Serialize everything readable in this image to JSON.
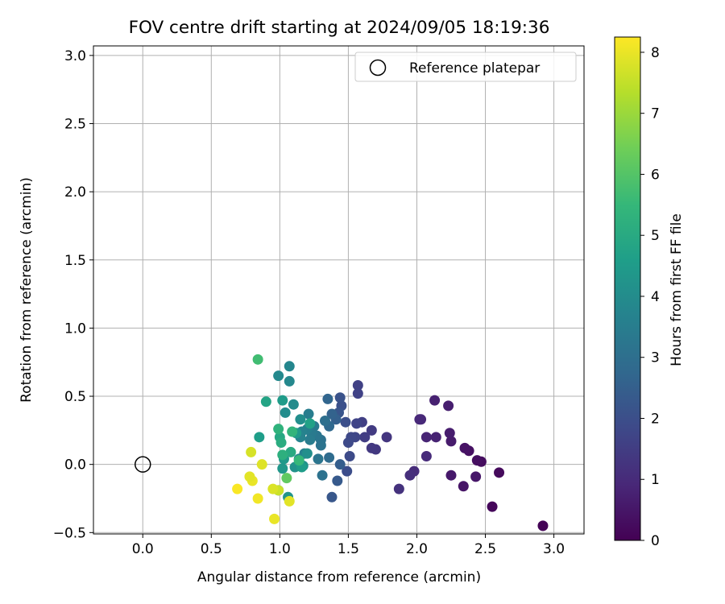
{
  "chart_data": {
    "type": "scatter",
    "title": "FOV centre drift starting at 2024/09/05 18:19:36",
    "xlabel": "Angular distance from reference (arcmin)",
    "ylabel": "Rotation from reference (arcmin)",
    "xlim": [
      -0.36,
      3.22
    ],
    "ylim": [
      -0.51,
      3.07
    ],
    "xticks": [
      0.0,
      0.5,
      1.0,
      1.5,
      2.0,
      2.5,
      3.0
    ],
    "xtick_labels": [
      "0.0",
      "0.5",
      "1.0",
      "1.5",
      "2.0",
      "2.5",
      "3.0"
    ],
    "yticks": [
      -0.5,
      0.0,
      0.5,
      1.0,
      1.5,
      2.0,
      2.5,
      3.0
    ],
    "ytick_labels": [
      "−0.5",
      "0.0",
      "0.5",
      "1.0",
      "1.5",
      "2.0",
      "2.5",
      "3.0"
    ],
    "grid": true,
    "legend": {
      "position": "top-right",
      "entries": [
        "Reference platepar"
      ]
    },
    "reference_point": {
      "label": "Reference platepar",
      "x": 0.0,
      "y": 0.0,
      "marker": "hollow-circle"
    },
    "colorbar": {
      "label": "Hours from first FF file",
      "colormap": "viridis",
      "range": [
        0,
        8.25
      ],
      "ticks": [
        0,
        1,
        2,
        3,
        4,
        5,
        6,
        7,
        8
      ],
      "tick_labels": [
        "0",
        "1",
        "2",
        "3",
        "4",
        "5",
        "6",
        "7",
        "8"
      ],
      "stops": [
        "#440154",
        "#482878",
        "#3e4989",
        "#31688e",
        "#26828e",
        "#1f9e89",
        "#35b779",
        "#6ece58",
        "#b5de2b",
        "#fde725"
      ]
    },
    "points": [
      {
        "x": 2.92,
        "y": -0.45,
        "h": 0.05
      },
      {
        "x": 2.55,
        "y": -0.31,
        "h": 0.15
      },
      {
        "x": 2.6,
        "y": -0.06,
        "h": 0.2
      },
      {
        "x": 2.47,
        "y": 0.02,
        "h": 0.25
      },
      {
        "x": 2.44,
        "y": 0.03,
        "h": 0.3
      },
      {
        "x": 2.38,
        "y": 0.1,
        "h": 0.35
      },
      {
        "x": 2.35,
        "y": 0.12,
        "h": 0.4
      },
      {
        "x": 2.34,
        "y": -0.16,
        "h": 0.45
      },
      {
        "x": 2.43,
        "y": -0.09,
        "h": 0.5
      },
      {
        "x": 2.25,
        "y": -0.08,
        "h": 0.55
      },
      {
        "x": 2.25,
        "y": 0.17,
        "h": 0.6
      },
      {
        "x": 2.24,
        "y": 0.23,
        "h": 0.65
      },
      {
        "x": 2.23,
        "y": 0.43,
        "h": 0.7
      },
      {
        "x": 2.13,
        "y": 0.47,
        "h": 0.75
      },
      {
        "x": 2.14,
        "y": 0.2,
        "h": 0.8
      },
      {
        "x": 2.07,
        "y": 0.2,
        "h": 0.85
      },
      {
        "x": 2.03,
        "y": 0.33,
        "h": 0.9
      },
      {
        "x": 2.02,
        "y": 0.33,
        "h": 0.95
      },
      {
        "x": 2.07,
        "y": 0.06,
        "h": 1.0
      },
      {
        "x": 1.98,
        "y": -0.05,
        "h": 1.05
      },
      {
        "x": 1.95,
        "y": -0.08,
        "h": 1.1
      },
      {
        "x": 1.87,
        "y": -0.18,
        "h": 1.2
      },
      {
        "x": 1.78,
        "y": 0.2,
        "h": 1.3
      },
      {
        "x": 1.7,
        "y": 0.11,
        "h": 1.35
      },
      {
        "x": 1.67,
        "y": 0.12,
        "h": 1.4
      },
      {
        "x": 1.67,
        "y": 0.25,
        "h": 1.45
      },
      {
        "x": 1.62,
        "y": 0.2,
        "h": 1.5
      },
      {
        "x": 1.6,
        "y": 0.31,
        "h": 1.55
      },
      {
        "x": 1.57,
        "y": 0.58,
        "h": 1.6
      },
      {
        "x": 1.57,
        "y": 0.52,
        "h": 1.65
      },
      {
        "x": 1.56,
        "y": 0.3,
        "h": 1.7
      },
      {
        "x": 1.55,
        "y": 0.2,
        "h": 1.75
      },
      {
        "x": 1.52,
        "y": 0.2,
        "h": 1.8
      },
      {
        "x": 1.5,
        "y": 0.16,
        "h": 1.85
      },
      {
        "x": 1.51,
        "y": 0.06,
        "h": 1.9
      },
      {
        "x": 1.49,
        "y": -0.05,
        "h": 1.95
      },
      {
        "x": 1.48,
        "y": 0.31,
        "h": 2.0
      },
      {
        "x": 1.45,
        "y": 0.43,
        "h": 2.05
      },
      {
        "x": 1.44,
        "y": 0.49,
        "h": 2.1
      },
      {
        "x": 1.43,
        "y": 0.38,
        "h": 2.2
      },
      {
        "x": 1.38,
        "y": -0.24,
        "h": 2.25
      },
      {
        "x": 1.42,
        "y": -0.12,
        "h": 2.35
      },
      {
        "x": 1.44,
        "y": 0.0,
        "h": 2.45
      },
      {
        "x": 1.41,
        "y": 0.33,
        "h": 2.5
      },
      {
        "x": 1.38,
        "y": 0.37,
        "h": 2.6
      },
      {
        "x": 1.35,
        "y": 0.48,
        "h": 2.7
      },
      {
        "x": 1.36,
        "y": 0.28,
        "h": 2.8
      },
      {
        "x": 1.36,
        "y": 0.05,
        "h": 2.9
      },
      {
        "x": 1.33,
        "y": 0.32,
        "h": 3.0
      },
      {
        "x": 1.3,
        "y": 0.18,
        "h": 3.05
      },
      {
        "x": 1.31,
        "y": -0.08,
        "h": 3.1
      },
      {
        "x": 1.3,
        "y": 0.14,
        "h": 3.15
      },
      {
        "x": 1.28,
        "y": 0.04,
        "h": 3.2
      },
      {
        "x": 1.27,
        "y": 0.21,
        "h": 3.25
      },
      {
        "x": 1.25,
        "y": 0.28,
        "h": 3.35
      },
      {
        "x": 1.23,
        "y": 0.23,
        "h": 3.4
      },
      {
        "x": 1.22,
        "y": 0.18,
        "h": 3.45
      },
      {
        "x": 1.21,
        "y": 0.37,
        "h": 3.5
      },
      {
        "x": 1.2,
        "y": 0.26,
        "h": 3.55
      },
      {
        "x": 1.18,
        "y": 0.08,
        "h": 3.6
      },
      {
        "x": 1.16,
        "y": 0.24,
        "h": 3.65
      },
      {
        "x": 1.15,
        "y": 0.2,
        "h": 3.7
      },
      {
        "x": 1.14,
        "y": 0.04,
        "h": 3.75
      },
      {
        "x": 1.07,
        "y": 0.72,
        "h": 3.8
      },
      {
        "x": 1.07,
        "y": 0.61,
        "h": 3.85
      },
      {
        "x": 0.99,
        "y": 0.65,
        "h": 3.9
      },
      {
        "x": 1.1,
        "y": 0.44,
        "h": 3.95
      },
      {
        "x": 1.04,
        "y": 0.38,
        "h": 4.0
      },
      {
        "x": 1.15,
        "y": 0.33,
        "h": 4.05
      },
      {
        "x": 1.2,
        "y": 0.08,
        "h": 4.1
      },
      {
        "x": 1.17,
        "y": -0.01,
        "h": 4.15
      },
      {
        "x": 1.11,
        "y": -0.02,
        "h": 4.2
      },
      {
        "x": 1.06,
        "y": -0.24,
        "h": 4.25
      },
      {
        "x": 0.99,
        "y": -0.19,
        "h": 4.3
      },
      {
        "x": 1.02,
        "y": -0.03,
        "h": 4.35
      },
      {
        "x": 1.03,
        "y": 0.04,
        "h": 4.4
      },
      {
        "x": 1.12,
        "y": 0.23,
        "h": 4.45
      },
      {
        "x": 1.02,
        "y": 0.47,
        "h": 4.5
      },
      {
        "x": 1.16,
        "y": -0.02,
        "h": 4.55
      },
      {
        "x": 0.85,
        "y": 0.2,
        "h": 4.6
      },
      {
        "x": 1.22,
        "y": 0.3,
        "h": 4.7
      },
      {
        "x": 0.9,
        "y": 0.46,
        "h": 4.8
      },
      {
        "x": 1.0,
        "y": 0.2,
        "h": 4.9
      },
      {
        "x": 1.08,
        "y": 0.09,
        "h": 5.0
      },
      {
        "x": 1.01,
        "y": 0.16,
        "h": 5.1
      },
      {
        "x": 1.02,
        "y": 0.07,
        "h": 5.2
      },
      {
        "x": 0.99,
        "y": 0.26,
        "h": 5.3
      },
      {
        "x": 1.09,
        "y": 0.24,
        "h": 5.4
      },
      {
        "x": 1.14,
        "y": 0.03,
        "h": 5.5
      },
      {
        "x": 0.84,
        "y": 0.77,
        "h": 5.7
      },
      {
        "x": 1.05,
        "y": -0.1,
        "h": 6.2
      },
      {
        "x": 0.99,
        "y": -0.19,
        "h": 7.6
      },
      {
        "x": 1.07,
        "y": -0.27,
        "h": 7.9
      },
      {
        "x": 0.95,
        "y": -0.18,
        "h": 7.8
      },
      {
        "x": 0.96,
        "y": -0.4,
        "h": 8.0
      },
      {
        "x": 0.84,
        "y": -0.25,
        "h": 8.1
      },
      {
        "x": 0.8,
        "y": -0.12,
        "h": 8.0
      },
      {
        "x": 0.78,
        "y": -0.09,
        "h": 7.9
      },
      {
        "x": 0.69,
        "y": -0.18,
        "h": 8.2
      },
      {
        "x": 0.87,
        "y": 0.0,
        "h": 7.85
      },
      {
        "x": 0.79,
        "y": 0.09,
        "h": 7.75
      }
    ]
  }
}
